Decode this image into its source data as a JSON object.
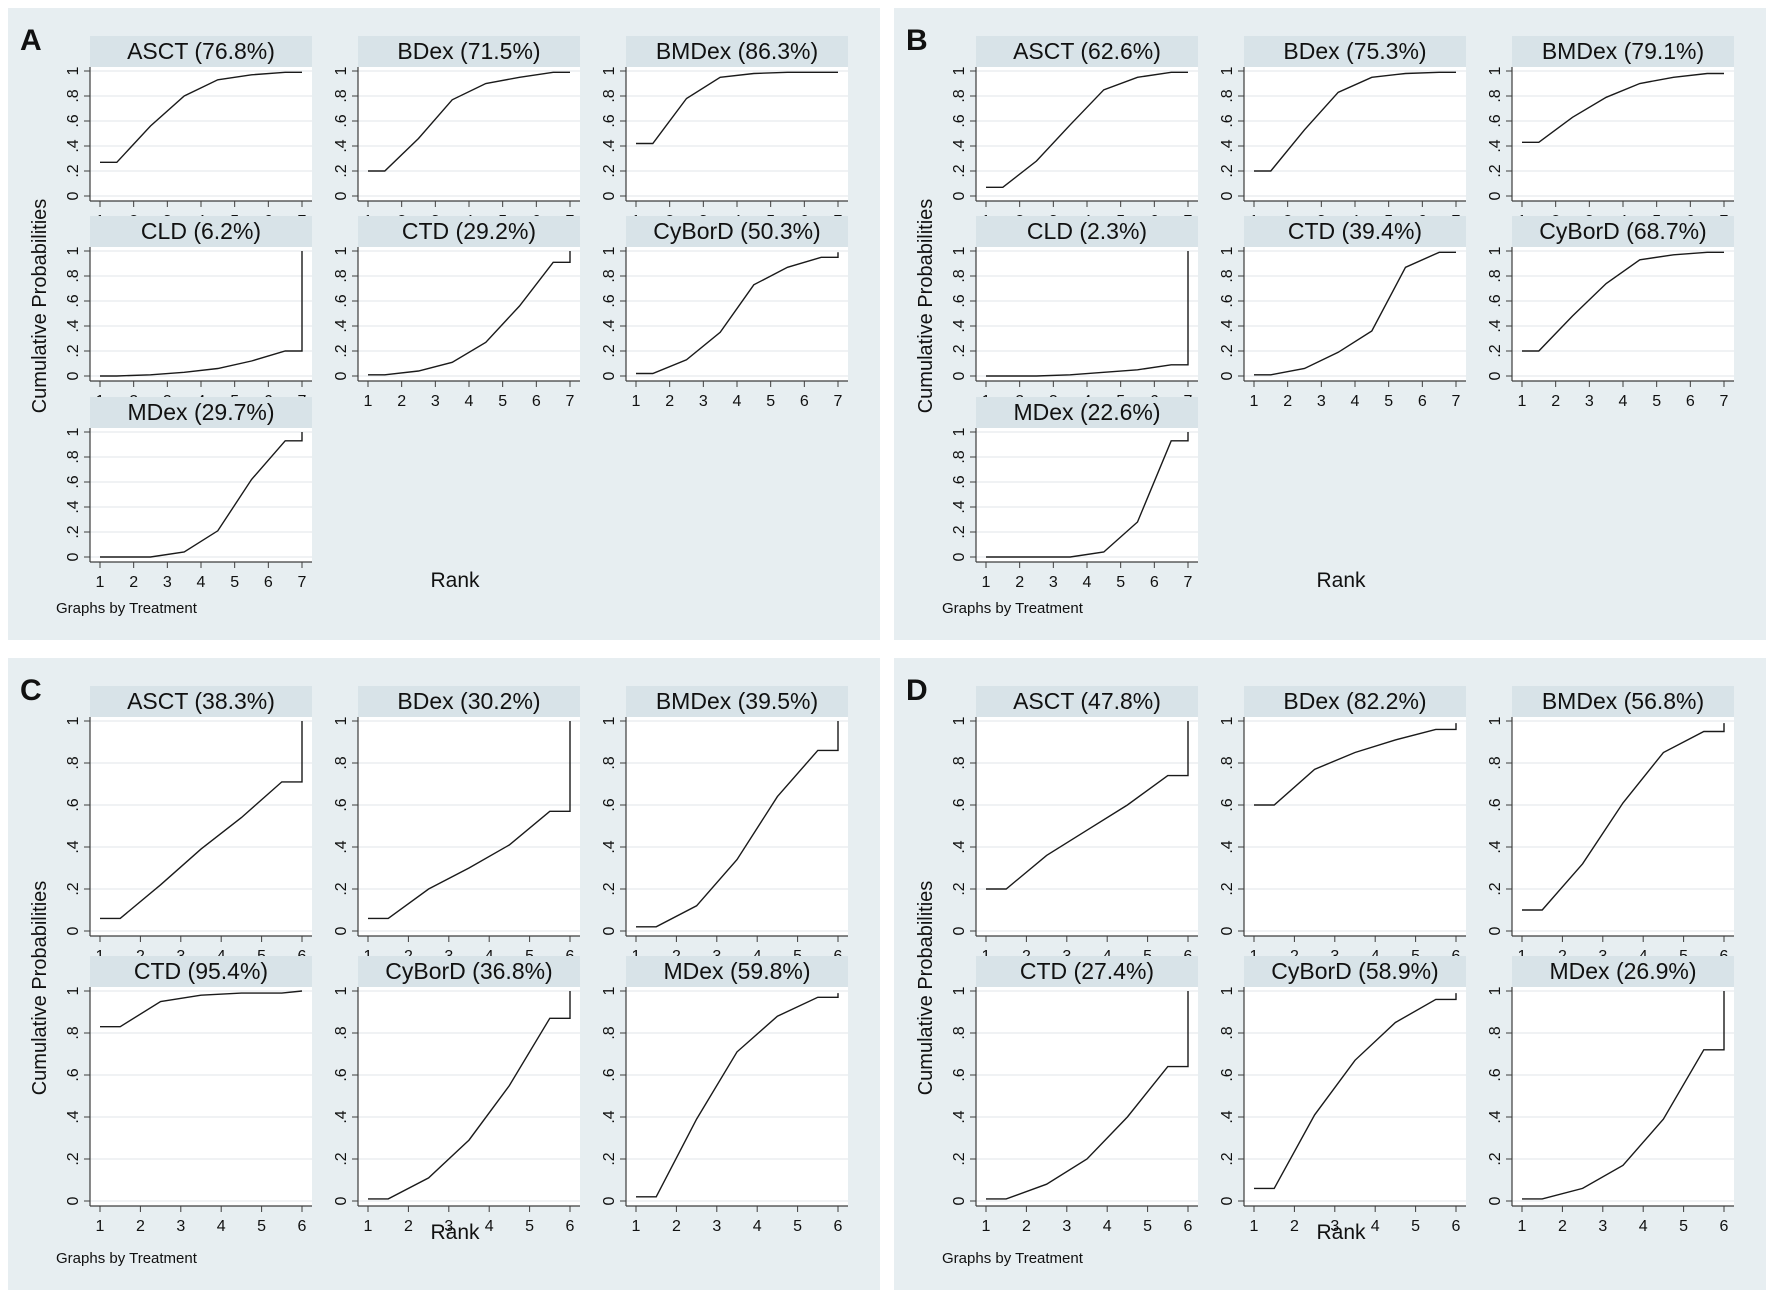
{
  "figure": {
    "ylabel": "Cumulative Probabilities",
    "xlabel": "Rank",
    "note": "Graphs by Treatment",
    "colors": {
      "panel_bg": "#e7eef1",
      "strip_bg": "#d8e3e8",
      "plot_bg": "#ffffff",
      "grid": "#e2e6e8",
      "axis": "#3d3d3d",
      "line": "#1a1a1a",
      "text": "#111111"
    }
  },
  "chart_data": [
    {
      "type": "line",
      "panel": "A",
      "ylabel": "Cumulative Probabilities",
      "xlabel": "Rank",
      "note": "Graphs by Treatment",
      "xlim": [
        1,
        7
      ],
      "ylim": [
        0,
        1
      ],
      "xticks": [
        "1",
        "2",
        "3",
        "4",
        "5",
        "6",
        "7"
      ],
      "yticks": [
        "0",
        ".2",
        ".4",
        ".6",
        ".8",
        "1"
      ],
      "series": [
        {
          "name": "ASCT",
          "sucra": "(76.8%)",
          "x": [
            1,
            1.5,
            2.5,
            3.5,
            4.5,
            5.5,
            6.5,
            7
          ],
          "y": [
            0.27,
            0.27,
            0.56,
            0.8,
            0.93,
            0.97,
            0.99,
            0.99
          ]
        },
        {
          "name": "BDex",
          "sucra": "(71.5%)",
          "x": [
            1,
            1.5,
            2.5,
            3.5,
            4.5,
            5.5,
            6.5,
            7
          ],
          "y": [
            0.2,
            0.2,
            0.46,
            0.77,
            0.9,
            0.95,
            0.99,
            0.99
          ]
        },
        {
          "name": "BMDex",
          "sucra": "(86.3%)",
          "x": [
            1,
            1.5,
            2.5,
            3.5,
            4.5,
            5.5,
            6.5,
            7
          ],
          "y": [
            0.42,
            0.42,
            0.78,
            0.95,
            0.98,
            0.99,
            0.99,
            0.99
          ]
        },
        {
          "name": "CLD",
          "sucra": "(6.2%)",
          "x": [
            1,
            1.5,
            2.5,
            3.5,
            4.5,
            5.5,
            6.5,
            7,
            7
          ],
          "y": [
            0.0,
            0.0,
            0.01,
            0.03,
            0.06,
            0.12,
            0.2,
            0.2,
            1.0
          ]
        },
        {
          "name": "CTD",
          "sucra": "(29.2%)",
          "x": [
            1,
            1.5,
            2.5,
            3.5,
            4.5,
            5.5,
            6.5,
            7,
            7
          ],
          "y": [
            0.01,
            0.01,
            0.04,
            0.11,
            0.27,
            0.56,
            0.91,
            0.91,
            1.0
          ]
        },
        {
          "name": "CyBorD",
          "sucra": "(50.3%)",
          "x": [
            1,
            1.5,
            2.5,
            3.5,
            4.5,
            5.5,
            6.5,
            7,
            7
          ],
          "y": [
            0.02,
            0.02,
            0.13,
            0.35,
            0.73,
            0.87,
            0.95,
            0.95,
            0.99
          ]
        },
        {
          "name": "MDex",
          "sucra": "(29.7%)",
          "x": [
            1,
            1.5,
            2.5,
            3.5,
            4.5,
            5.5,
            6.5,
            7,
            7
          ],
          "y": [
            0.0,
            0.0,
            0.0,
            0.04,
            0.21,
            0.62,
            0.93,
            0.93,
            1.0
          ]
        }
      ]
    },
    {
      "type": "line",
      "panel": "B",
      "ylabel": "Cumulative Probabilities",
      "xlabel": "Rank",
      "note": "Graphs by Treatment",
      "xlim": [
        1,
        7
      ],
      "ylim": [
        0,
        1
      ],
      "xticks": [
        "1",
        "2",
        "3",
        "4",
        "5",
        "6",
        "7"
      ],
      "yticks": [
        "0",
        ".2",
        ".4",
        ".6",
        ".8",
        "1"
      ],
      "series": [
        {
          "name": "ASCT",
          "sucra": "(62.6%)",
          "x": [
            1,
            1.5,
            2.5,
            3.5,
            4.5,
            5.5,
            6.5,
            7
          ],
          "y": [
            0.07,
            0.07,
            0.28,
            0.57,
            0.85,
            0.95,
            0.99,
            0.99
          ]
        },
        {
          "name": "BDex",
          "sucra": "(75.3%)",
          "x": [
            1,
            1.5,
            2.5,
            3.5,
            4.5,
            5.5,
            6.5,
            7
          ],
          "y": [
            0.2,
            0.2,
            0.53,
            0.83,
            0.95,
            0.98,
            0.99,
            0.99
          ]
        },
        {
          "name": "BMDex",
          "sucra": "(79.1%)",
          "x": [
            1,
            1.5,
            2.5,
            3.5,
            4.5,
            5.5,
            6.5,
            7
          ],
          "y": [
            0.43,
            0.43,
            0.63,
            0.79,
            0.9,
            0.95,
            0.98,
            0.98
          ]
        },
        {
          "name": "CLD",
          "sucra": "(2.3%)",
          "x": [
            1,
            1.5,
            2.5,
            3.5,
            4.5,
            5.5,
            6.5,
            7,
            7
          ],
          "y": [
            0.0,
            0.0,
            0.0,
            0.01,
            0.03,
            0.05,
            0.09,
            0.09,
            1.0
          ]
        },
        {
          "name": "CTD",
          "sucra": "(39.4%)",
          "x": [
            1,
            1.5,
            2.5,
            3.5,
            4.5,
            5.5,
            6.5,
            7,
            7
          ],
          "y": [
            0.01,
            0.01,
            0.06,
            0.19,
            0.36,
            0.87,
            0.99,
            0.99,
            0.99
          ]
        },
        {
          "name": "CyBorD",
          "sucra": "(68.7%)",
          "x": [
            1,
            1.5,
            2.5,
            3.5,
            4.5,
            5.5,
            6.5,
            7
          ],
          "y": [
            0.2,
            0.2,
            0.48,
            0.74,
            0.93,
            0.97,
            0.99,
            0.99
          ]
        },
        {
          "name": "MDex",
          "sucra": "(22.6%)",
          "x": [
            1,
            1.5,
            2.5,
            3.5,
            4.5,
            5.5,
            6.5,
            7,
            7
          ],
          "y": [
            0.0,
            0.0,
            0.0,
            0.0,
            0.04,
            0.28,
            0.93,
            0.93,
            1.0
          ]
        }
      ]
    },
    {
      "type": "line",
      "panel": "C",
      "ylabel": "Cumulative Probabilities",
      "xlabel": "Rank",
      "note": "Graphs by Treatment",
      "xlim": [
        1,
        6
      ],
      "ylim": [
        0,
        1
      ],
      "xticks": [
        "1",
        "2",
        "3",
        "4",
        "5",
        "6"
      ],
      "yticks": [
        "0",
        ".2",
        ".4",
        ".6",
        ".8",
        "1"
      ],
      "series": [
        {
          "name": "ASCT",
          "sucra": "(38.3%)",
          "x": [
            1,
            1.5,
            2.5,
            3.5,
            4.5,
            5.5,
            6,
            6
          ],
          "y": [
            0.06,
            0.06,
            0.22,
            0.39,
            0.54,
            0.71,
            0.71,
            1.0
          ]
        },
        {
          "name": "BDex",
          "sucra": "(30.2%)",
          "x": [
            1,
            1.5,
            2.5,
            3.5,
            4.5,
            5.5,
            6,
            6
          ],
          "y": [
            0.06,
            0.06,
            0.2,
            0.3,
            0.41,
            0.57,
            0.57,
            1.0
          ]
        },
        {
          "name": "BMDex",
          "sucra": "(39.5%)",
          "x": [
            1,
            1.5,
            2.5,
            3.5,
            4.5,
            5.5,
            6,
            6
          ],
          "y": [
            0.02,
            0.02,
            0.12,
            0.34,
            0.64,
            0.86,
            0.86,
            1.0
          ]
        },
        {
          "name": "CTD",
          "sucra": "(95.4%)",
          "x": [
            1,
            1.5,
            2.5,
            3.5,
            4.5,
            5.5,
            6
          ],
          "y": [
            0.83,
            0.83,
            0.95,
            0.98,
            0.99,
            0.99,
            1.0
          ]
        },
        {
          "name": "CyBorD",
          "sucra": "(36.8%)",
          "x": [
            1,
            1.5,
            2.5,
            3.5,
            4.5,
            5.5,
            6,
            6
          ],
          "y": [
            0.01,
            0.01,
            0.11,
            0.29,
            0.55,
            0.87,
            0.87,
            1.0
          ]
        },
        {
          "name": "MDex",
          "sucra": "(59.8%)",
          "x": [
            1,
            1.5,
            2.5,
            3.5,
            4.5,
            5.5,
            6,
            6
          ],
          "y": [
            0.02,
            0.02,
            0.39,
            0.71,
            0.88,
            0.97,
            0.97,
            0.99
          ]
        }
      ]
    },
    {
      "type": "line",
      "panel": "D",
      "ylabel": "Cumulative Probabilities",
      "xlabel": "Rank",
      "note": "Graphs by Treatment",
      "xlim": [
        1,
        6
      ],
      "ylim": [
        0,
        1
      ],
      "xticks": [
        "1",
        "2",
        "3",
        "4",
        "5",
        "6"
      ],
      "yticks": [
        "0",
        ".2",
        ".4",
        ".6",
        ".8",
        "1"
      ],
      "series": [
        {
          "name": "ASCT",
          "sucra": "(47.8%)",
          "x": [
            1,
            1.5,
            2.5,
            3.5,
            4.5,
            5.5,
            6,
            6
          ],
          "y": [
            0.2,
            0.2,
            0.36,
            0.48,
            0.6,
            0.74,
            0.74,
            1.0
          ]
        },
        {
          "name": "BDex",
          "sucra": "(82.2%)",
          "x": [
            1,
            1.5,
            2.5,
            3.5,
            4.5,
            5.5,
            6,
            6
          ],
          "y": [
            0.6,
            0.6,
            0.77,
            0.85,
            0.91,
            0.96,
            0.96,
            0.99
          ]
        },
        {
          "name": "BMDex",
          "sucra": "(56.8%)",
          "x": [
            1,
            1.5,
            2.5,
            3.5,
            4.5,
            5.5,
            6,
            6
          ],
          "y": [
            0.1,
            0.1,
            0.32,
            0.61,
            0.85,
            0.95,
            0.95,
            0.99
          ]
        },
        {
          "name": "CTD",
          "sucra": "(27.4%)",
          "x": [
            1,
            1.5,
            2.5,
            3.5,
            4.5,
            5.5,
            6,
            6
          ],
          "y": [
            0.01,
            0.01,
            0.08,
            0.2,
            0.4,
            0.64,
            0.64,
            1.0
          ]
        },
        {
          "name": "CyBorD",
          "sucra": "(58.9%)",
          "x": [
            1,
            1.5,
            2.5,
            3.5,
            4.5,
            5.5,
            6,
            6
          ],
          "y": [
            0.06,
            0.06,
            0.41,
            0.67,
            0.85,
            0.96,
            0.96,
            0.99
          ]
        },
        {
          "name": "MDex",
          "sucra": "(26.9%)",
          "x": [
            1,
            1.5,
            2.5,
            3.5,
            4.5,
            5.5,
            6,
            6
          ],
          "y": [
            0.01,
            0.01,
            0.06,
            0.17,
            0.39,
            0.72,
            0.72,
            1.0
          ]
        }
      ]
    }
  ]
}
